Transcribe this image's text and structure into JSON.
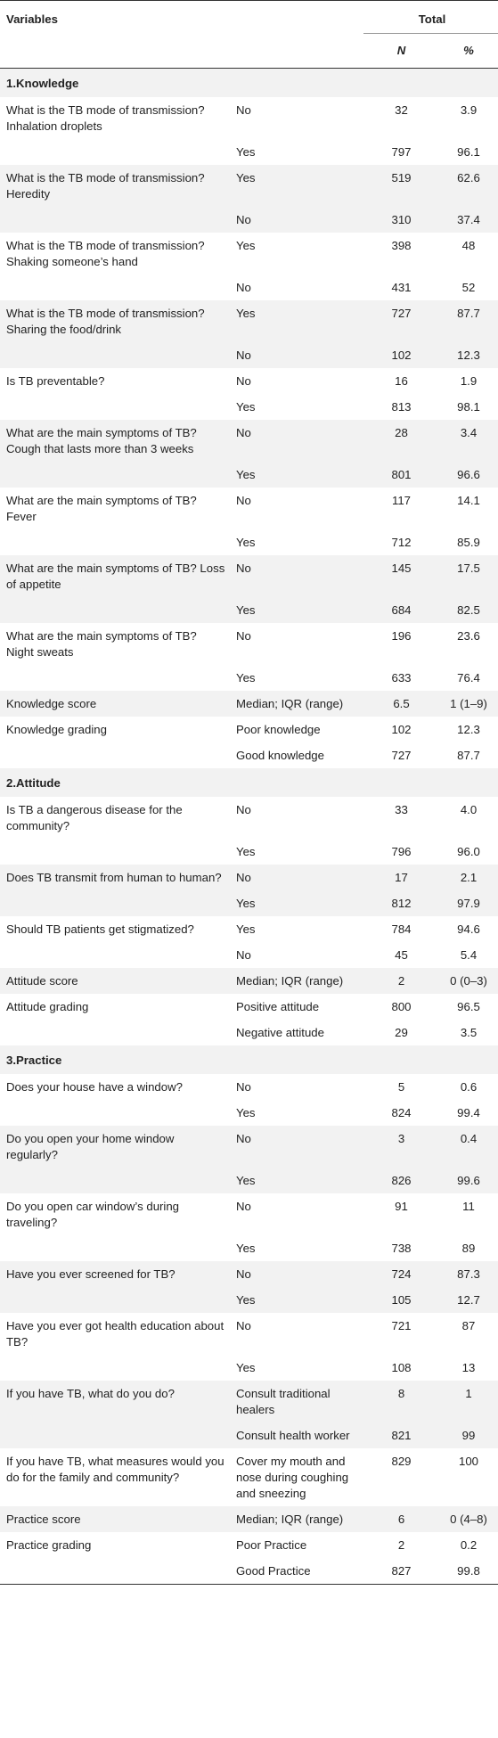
{
  "header": {
    "variables": "Variables",
    "total": "Total",
    "n": "N",
    "pct": "%"
  },
  "rows": [
    {
      "type": "section",
      "label": "1.Knowledge"
    },
    {
      "q": "What is the TB mode of transmission? Inhalation droplets",
      "a": "No",
      "n": "32",
      "p": "3.9"
    },
    {
      "q": "",
      "a": "Yes",
      "n": "797",
      "p": "96.1"
    },
    {
      "q": "What is the TB mode of transmission? Heredity",
      "a": "Yes",
      "n": "519",
      "p": "62.6"
    },
    {
      "q": "",
      "a": "No",
      "n": "310",
      "p": "37.4"
    },
    {
      "q": "What is the TB mode of transmission? Shaking someone’s hand",
      "a": "Yes",
      "n": "398",
      "p": "48"
    },
    {
      "q": "",
      "a": "No",
      "n": "431",
      "p": "52"
    },
    {
      "q": "What is the TB mode of transmission? Sharing the food/drink",
      "a": "Yes",
      "n": "727",
      "p": "87.7"
    },
    {
      "q": "",
      "a": "No",
      "n": "102",
      "p": "12.3"
    },
    {
      "q": "Is TB preventable?",
      "a": "No",
      "n": "16",
      "p": "1.9"
    },
    {
      "q": "",
      "a": "Yes",
      "n": "813",
      "p": "98.1"
    },
    {
      "q": "What are the main symptoms of TB? Cough that lasts more than 3 weeks",
      "a": "No",
      "n": "28",
      "p": "3.4"
    },
    {
      "q": "",
      "a": "Yes",
      "n": "801",
      "p": "96.6"
    },
    {
      "q": "What are the main symptoms of TB? Fever",
      "a": "No",
      "n": "117",
      "p": "14.1"
    },
    {
      "q": "",
      "a": "Yes",
      "n": "712",
      "p": "85.9"
    },
    {
      "q": "What are the main symptoms of TB? Loss of appetite",
      "a": "No",
      "n": "145",
      "p": "17.5"
    },
    {
      "q": "",
      "a": "Yes",
      "n": "684",
      "p": "82.5"
    },
    {
      "q": "What are the main symptoms of TB? Night sweats",
      "a": "No",
      "n": "196",
      "p": "23.6"
    },
    {
      "q": "",
      "a": "Yes",
      "n": "633",
      "p": "76.4"
    },
    {
      "q": "Knowledge score",
      "a": "Median; IQR (range)",
      "n": "6.5",
      "p": "1 (1–9)"
    },
    {
      "q": "Knowledge grading",
      "a": "Poor knowledge",
      "n": "102",
      "p": "12.3"
    },
    {
      "q": "",
      "a": "Good knowledge",
      "n": "727",
      "p": "87.7"
    },
    {
      "type": "section",
      "label": "2.Attitude"
    },
    {
      "q": "Is TB a dangerous disease for the community?",
      "a": "No",
      "n": "33",
      "p": "4.0"
    },
    {
      "q": "",
      "a": "Yes",
      "n": "796",
      "p": "96.0"
    },
    {
      "q": "Does TB transmit from human to human?",
      "a": "No",
      "n": "17",
      "p": "2.1"
    },
    {
      "q": "",
      "a": "Yes",
      "n": "812",
      "p": "97.9"
    },
    {
      "q": "Should TB patients get stigmatized?",
      "a": "Yes",
      "n": "784",
      "p": "94.6"
    },
    {
      "q": "",
      "a": "No",
      "n": "45",
      "p": "5.4"
    },
    {
      "q": "Attitude score",
      "a": "Median; IQR (range)",
      "n": "2",
      "p": "0 (0–3)"
    },
    {
      "q": "Attitude grading",
      "a": "Positive attitude",
      "n": "800",
      "p": "96.5"
    },
    {
      "q": "",
      "a": "Negative attitude",
      "n": "29",
      "p": "3.5"
    },
    {
      "type": "section",
      "label": "3.Practice"
    },
    {
      "q": "Does your house have a window?",
      "a": "No",
      "n": "5",
      "p": "0.6"
    },
    {
      "q": "",
      "a": "Yes",
      "n": "824",
      "p": "99.4"
    },
    {
      "q": "Do you open your home window regularly?",
      "a": "No",
      "n": "3",
      "p": "0.4"
    },
    {
      "q": "",
      "a": "Yes",
      "n": "826",
      "p": "99.6"
    },
    {
      "q": "Do you open car window’s during traveling?",
      "a": "No",
      "n": "91",
      "p": "11"
    },
    {
      "q": "",
      "a": "Yes",
      "n": "738",
      "p": "89"
    },
    {
      "q": "Have you ever screened for TB?",
      "a": "No",
      "n": "724",
      "p": "87.3"
    },
    {
      "q": "",
      "a": "Yes",
      "n": "105",
      "p": "12.7"
    },
    {
      "q": "Have you ever got health education about TB?",
      "a": "No",
      "n": "721",
      "p": "87"
    },
    {
      "q": "",
      "a": "Yes",
      "n": "108",
      "p": "13"
    },
    {
      "q": "If you have TB, what do you do?",
      "a": "Consult traditional healers",
      "n": "8",
      "p": "1"
    },
    {
      "q": "",
      "a": "Consult health worker",
      "n": "821",
      "p": "99"
    },
    {
      "q": "If you have TB, what measures would you do for the family and community?",
      "a": "Cover my mouth and nose during coughing and sneezing",
      "n": "829",
      "p": "100"
    },
    {
      "q": "Practice score",
      "a": "Median; IQR (range)",
      "n": "6",
      "p": "0 (4–8)"
    },
    {
      "q": "Practice grading",
      "a": "Poor Practice",
      "n": "2",
      "p": "0.2"
    },
    {
      "q": "",
      "a": "Good Practice",
      "n": "827",
      "p": "99.8"
    }
  ]
}
